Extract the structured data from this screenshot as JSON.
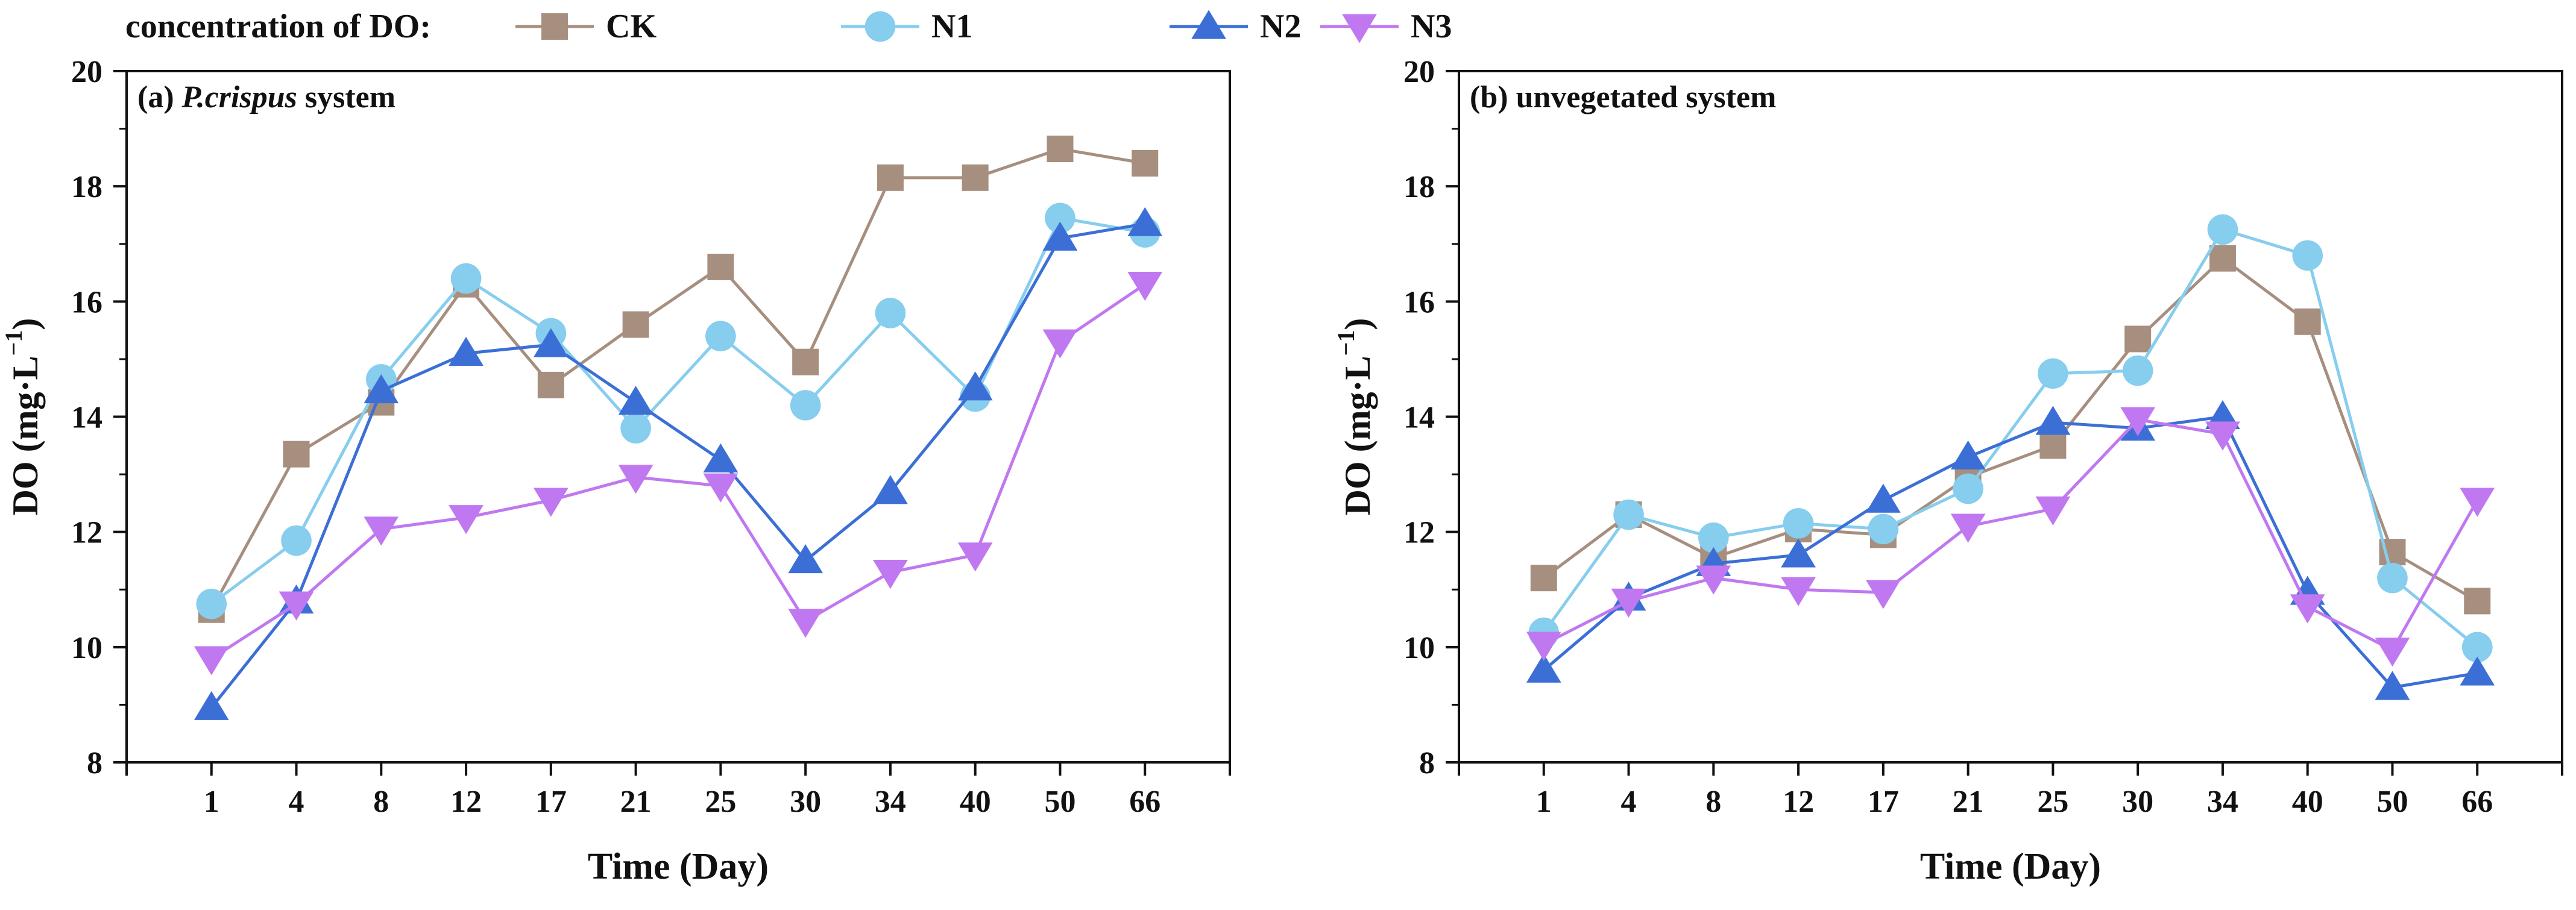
{
  "legend": {
    "title": "concentration of DO:",
    "entries": [
      {
        "name": "CK",
        "color": "#a78f7f",
        "marker": "square"
      },
      {
        "name": "N1",
        "color": "#86cdee",
        "marker": "circle"
      },
      {
        "name": "N2",
        "color": "#3c6fd6",
        "marker": "triangle-up"
      },
      {
        "name": "N3",
        "color": "#c078f0",
        "marker": "triangle-down"
      }
    ]
  },
  "chart_data": [
    {
      "type": "line",
      "panel_label": "(a) ",
      "panel_title_italic": "P.crispus",
      "panel_title_rest": " system",
      "xlabel": "Time (Day)",
      "ylabel_main": "DO (mg·L",
      "ylabel_sup": "−1",
      "ylabel_close": ")",
      "categories": [
        "1",
        "4",
        "8",
        "12",
        "17",
        "21",
        "25",
        "30",
        "34",
        "40",
        "50",
        "66"
      ],
      "yticks": [
        "8",
        "10",
        "12",
        "14",
        "16",
        "18",
        "20"
      ],
      "ylim": [
        8,
        20
      ],
      "grid": false,
      "series": [
        {
          "name": "CK",
          "values": [
            10.65,
            13.35,
            14.25,
            16.3,
            14.55,
            15.6,
            16.6,
            14.95,
            18.15,
            18.15,
            18.65,
            18.4
          ]
        },
        {
          "name": "N1",
          "values": [
            10.75,
            11.85,
            14.65,
            16.4,
            15.45,
            13.8,
            15.4,
            14.2,
            15.8,
            14.35,
            17.45,
            17.2
          ]
        },
        {
          "name": "N2",
          "values": [
            8.95,
            10.8,
            14.45,
            15.1,
            15.25,
            14.25,
            13.25,
            11.5,
            12.7,
            14.5,
            17.1,
            17.35
          ]
        },
        {
          "name": "N3",
          "values": [
            9.8,
            10.75,
            12.05,
            12.25,
            12.55,
            12.95,
            12.8,
            10.45,
            11.3,
            11.6,
            15.3,
            16.3
          ]
        }
      ]
    },
    {
      "type": "line",
      "panel_label": "(b) ",
      "panel_title_italic": "",
      "panel_title_rest": "unvegetated system",
      "xlabel": "Time (Day)",
      "ylabel_main": "DO (mg·L",
      "ylabel_sup": "−1",
      "ylabel_close": ")",
      "categories": [
        "1",
        "4",
        "8",
        "12",
        "17",
        "21",
        "25",
        "30",
        "34",
        "40",
        "50",
        "66"
      ],
      "yticks": [
        "8",
        "10",
        "12",
        "14",
        "16",
        "18",
        "20"
      ],
      "ylim": [
        8,
        20
      ],
      "grid": false,
      "series": [
        {
          "name": "CK",
          "values": [
            11.2,
            12.3,
            11.55,
            12.05,
            11.95,
            12.95,
            13.5,
            15.35,
            16.75,
            15.65,
            11.65,
            10.8
          ]
        },
        {
          "name": "N1",
          "values": [
            10.25,
            12.3,
            11.9,
            12.15,
            12.05,
            12.75,
            14.75,
            14.8,
            17.25,
            16.8,
            11.2,
            10.0
          ]
        },
        {
          "name": "N2",
          "values": [
            9.6,
            10.85,
            11.45,
            11.6,
            12.55,
            13.3,
            13.9,
            13.8,
            14.0,
            10.95,
            9.3,
            9.55
          ]
        },
        {
          "name": "N3",
          "values": [
            10.05,
            10.8,
            11.2,
            11.0,
            10.95,
            12.1,
            12.4,
            13.95,
            13.7,
            10.7,
            9.95,
            12.55
          ]
        }
      ]
    }
  ]
}
